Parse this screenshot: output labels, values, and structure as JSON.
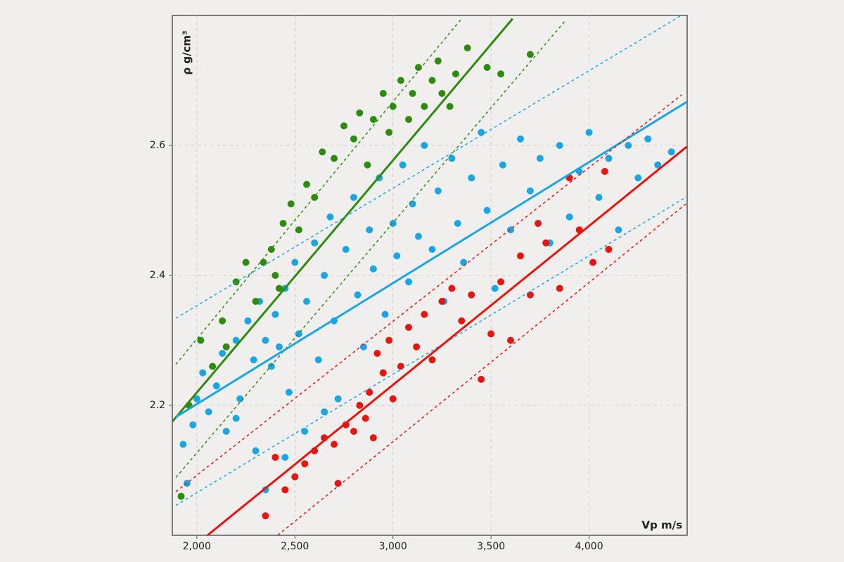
{
  "chart_data": {
    "type": "scatter",
    "x_label": "Vp m/s",
    "y_label": "ρ g/cm³",
    "xlim": [
      1875,
      4500
    ],
    "ylim": [
      2.0,
      2.8
    ],
    "xticks": [
      {
        "value": 2000,
        "label": "2,000"
      },
      {
        "value": 2500,
        "label": "2,500"
      },
      {
        "value": 3000,
        "label": "3,000"
      },
      {
        "value": 3500,
        "label": "3,500"
      },
      {
        "value": 4000,
        "label": "4,000"
      }
    ],
    "yticks": [
      2.2,
      2.4,
      2.6
    ],
    "grid": true,
    "series": [
      {
        "color": "#1ba6e3",
        "x": [
          1930,
          1950,
          1980,
          2000,
          2030,
          2060,
          2100,
          2130,
          2150,
          2200,
          2220,
          2260,
          2290,
          2320,
          2350,
          2380,
          2400,
          2420,
          2450,
          2470,
          2500,
          2520,
          2560,
          2600,
          2620,
          2650,
          2680,
          2700,
          2720,
          2760,
          2800,
          2820,
          2850,
          2880,
          2900,
          2930,
          2960,
          3000,
          3020,
          3050,
          3080,
          3100,
          3130,
          3160,
          3200,
          3230,
          3260,
          3300,
          3330,
          3360,
          3400,
          3450,
          3480,
          3520,
          3560,
          3600,
          3650,
          3700,
          3750,
          3800,
          3850,
          3900,
          3950,
          4000,
          4050,
          4100,
          4150,
          4200,
          4250,
          4300,
          4350,
          4420,
          2350,
          2450,
          2550,
          2650,
          2300,
          2200
        ],
        "values": [
          2.14,
          2.08,
          2.17,
          2.21,
          2.25,
          2.19,
          2.23,
          2.28,
          2.16,
          2.3,
          2.21,
          2.33,
          2.27,
          2.36,
          2.3,
          2.26,
          2.34,
          2.29,
          2.38,
          2.22,
          2.42,
          2.31,
          2.36,
          2.45,
          2.27,
          2.4,
          2.49,
          2.33,
          2.21,
          2.44,
          2.52,
          2.37,
          2.29,
          2.47,
          2.41,
          2.55,
          2.34,
          2.48,
          2.43,
          2.57,
          2.39,
          2.51,
          2.46,
          2.6,
          2.44,
          2.53,
          2.36,
          2.58,
          2.48,
          2.42,
          2.55,
          2.62,
          2.5,
          2.38,
          2.57,
          2.47,
          2.61,
          2.53,
          2.58,
          2.45,
          2.6,
          2.49,
          2.56,
          2.62,
          2.52,
          2.58,
          2.47,
          2.6,
          2.55,
          2.61,
          2.57,
          2.59,
          2.07,
          2.12,
          2.16,
          2.19,
          2.13,
          2.18
        ]
      },
      {
        "color": "#2e8b0e",
        "x": [
          1920,
          1960,
          2020,
          2080,
          2130,
          2200,
          2250,
          2300,
          2340,
          2380,
          2400,
          2440,
          2480,
          2520,
          2560,
          2600,
          2640,
          2700,
          2750,
          2800,
          2830,
          2870,
          2900,
          2950,
          2980,
          3000,
          3040,
          3080,
          3100,
          3130,
          3160,
          3200,
          3230,
          3250,
          3290,
          3320,
          3380,
          3480,
          3550,
          3700,
          2150,
          2420
        ],
        "values": [
          2.06,
          2.2,
          2.3,
          2.26,
          2.33,
          2.39,
          2.42,
          2.36,
          2.42,
          2.44,
          2.4,
          2.48,
          2.51,
          2.47,
          2.54,
          2.52,
          2.59,
          2.58,
          2.63,
          2.61,
          2.65,
          2.57,
          2.64,
          2.68,
          2.62,
          2.66,
          2.7,
          2.64,
          2.68,
          2.72,
          2.66,
          2.7,
          2.73,
          2.68,
          2.66,
          2.71,
          2.75,
          2.72,
          2.71,
          2.74,
          2.29,
          2.38
        ]
      },
      {
        "color": "#e8140f",
        "x": [
          2350,
          2400,
          2450,
          2500,
          2550,
          2600,
          2650,
          2700,
          2720,
          2760,
          2800,
          2830,
          2860,
          2880,
          2900,
          2920,
          2950,
          2980,
          3000,
          3040,
          3080,
          3120,
          3160,
          3200,
          3250,
          3300,
          3350,
          3400,
          3450,
          3500,
          3550,
          3600,
          3650,
          3700,
          3780,
          3850,
          3950,
          4020,
          4100,
          3900,
          3740,
          4080
        ],
        "values": [
          2.03,
          2.12,
          2.07,
          2.09,
          2.11,
          2.13,
          2.15,
          2.14,
          2.08,
          2.17,
          2.16,
          2.2,
          2.18,
          2.22,
          2.15,
          2.28,
          2.25,
          2.3,
          2.21,
          2.26,
          2.32,
          2.29,
          2.34,
          2.27,
          2.36,
          2.38,
          2.33,
          2.37,
          2.24,
          2.31,
          2.39,
          2.3,
          2.43,
          2.37,
          2.45,
          2.38,
          2.47,
          2.42,
          2.44,
          2.55,
          2.48,
          2.56
        ]
      }
    ],
    "fit_lines": [
      {
        "color": "#2e8b0e",
        "style": "solid",
        "x": [
          1875,
          3610
        ],
        "values": [
          2.175,
          2.795
        ]
      },
      {
        "color": "#2e8b0e",
        "style": "dashed",
        "x": [
          1893,
          3344
        ],
        "values": [
          2.263,
          2.793
        ]
      },
      {
        "color": "#2e8b0e",
        "style": "dashed",
        "x": [
          1893,
          3882
        ],
        "values": [
          2.089,
          2.793
        ]
      },
      {
        "color": "#1ba6e3",
        "style": "solid",
        "x": [
          1893,
          4498
        ],
        "values": [
          2.182,
          2.667
        ]
      },
      {
        "color": "#1ba6e3",
        "style": "dashed",
        "x": [
          1893,
          4470
        ],
        "values": [
          2.334,
          2.8
        ]
      },
      {
        "color": "#1ba6e3",
        "style": "dashed",
        "x": [
          1893,
          4498
        ],
        "values": [
          2.046,
          2.521
        ]
      },
      {
        "color": "#e8140f",
        "style": "solid",
        "x": [
          2054,
          4498
        ],
        "values": [
          2.0,
          2.598
        ]
      },
      {
        "color": "#e8140f",
        "style": "dashed",
        "x": [
          1893,
          4473
        ],
        "values": [
          2.067,
          2.678
        ]
      },
      {
        "color": "#e8140f",
        "style": "dashed",
        "x": [
          2412,
          4498
        ],
        "values": [
          2.0,
          2.511
        ]
      }
    ]
  }
}
